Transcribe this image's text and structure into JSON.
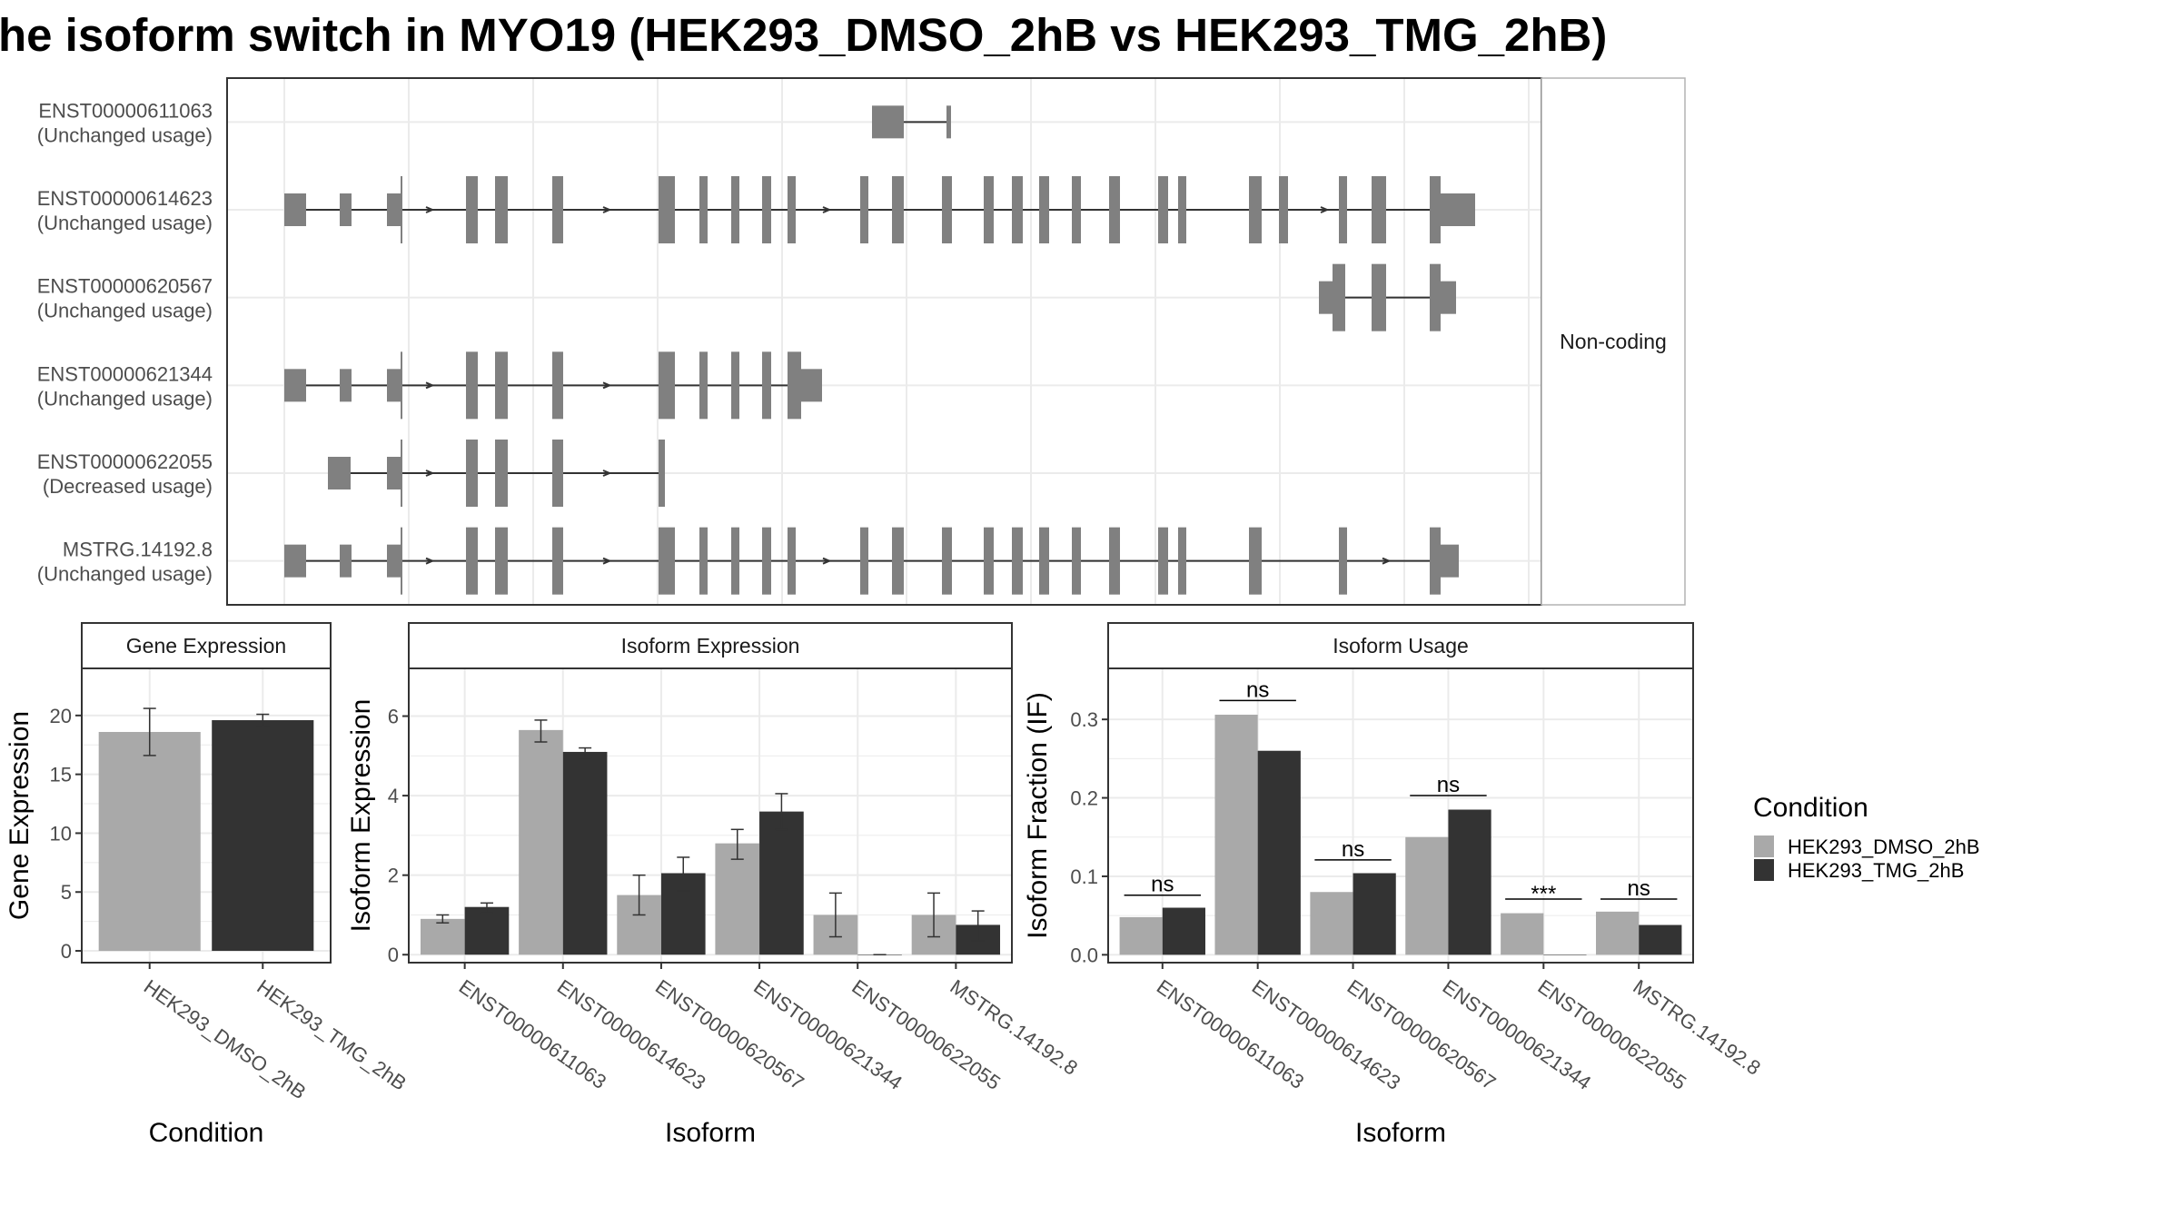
{
  "title": "he isoform switch in MYO19 (HEK293_DMSO_2hB vs HEK293_TMG_2hB)",
  "colors": {
    "exon": "#808080",
    "dmso": "#a9a9a9",
    "tmg": "#333333",
    "grid": "#ebebeb",
    "strip": "#ffffff",
    "panel_border": "#333333"
  },
  "chart_data": [
    {
      "type": "transcript-structure",
      "strip_label": "Non-coding",
      "transcripts": [
        {
          "id": "ENST00000611063",
          "usage": "(Unchanged usage)",
          "exons": [
            [
              960,
              995,
              "utr"
            ],
            [
              1042,
              1047,
              "utr"
            ]
          ],
          "intron": [
            995,
            1042
          ],
          "arrows": []
        },
        {
          "id": "ENST00000614623",
          "usage": "(Unchanged usage)",
          "exons": [
            [
              313,
              337,
              "utr"
            ],
            [
              374,
              387,
              "utr"
            ],
            [
              426,
              441,
              "utr"
            ],
            [
              441,
              443,
              "cds"
            ],
            [
              513,
              526,
              "cds"
            ],
            [
              545,
              559,
              "cds"
            ],
            [
              608,
              620,
              "cds"
            ],
            [
              725,
              743,
              "cds"
            ],
            [
              770,
              779,
              "cds"
            ],
            [
              805,
              814,
              "cds"
            ],
            [
              839,
              849,
              "cds"
            ],
            [
              867,
              876,
              "cds"
            ],
            [
              947,
              956,
              "cds"
            ],
            [
              982,
              995,
              "cds"
            ],
            [
              1037,
              1048,
              "cds"
            ],
            [
              1083,
              1094,
              "cds"
            ],
            [
              1114,
              1126,
              "cds"
            ],
            [
              1144,
              1155,
              "cds"
            ],
            [
              1180,
              1190,
              "cds"
            ],
            [
              1221,
              1233,
              "cds"
            ],
            [
              1275,
              1286,
              "cds"
            ],
            [
              1297,
              1306,
              "cds"
            ],
            [
              1375,
              1389,
              "cds"
            ],
            [
              1408,
              1418,
              "cds"
            ],
            [
              1474,
              1483,
              "cds"
            ],
            [
              1510,
              1526,
              "cds"
            ],
            [
              1574,
              1586,
              "cds"
            ],
            [
              1586,
              1624,
              "utr"
            ]
          ],
          "intron": [
            313,
            1624
          ],
          "arrows": [
            475,
            670,
            912,
            1460
          ]
        },
        {
          "id": "ENST00000620567",
          "usage": "(Unchanged usage)",
          "exons": [
            [
              1452,
              1467,
              "utr"
            ],
            [
              1467,
              1481,
              "cds"
            ],
            [
              1510,
              1526,
              "cds"
            ],
            [
              1574,
              1586,
              "cds"
            ],
            [
              1586,
              1603,
              "utr"
            ]
          ],
          "intron": [
            1452,
            1603
          ],
          "arrows": []
        },
        {
          "id": "ENST00000621344",
          "usage": "(Unchanged usage)",
          "exons": [
            [
              313,
              337,
              "utr"
            ],
            [
              374,
              387,
              "utr"
            ],
            [
              426,
              441,
              "utr"
            ],
            [
              441,
              443,
              "cds"
            ],
            [
              513,
              526,
              "cds"
            ],
            [
              545,
              559,
              "cds"
            ],
            [
              608,
              620,
              "cds"
            ],
            [
              725,
              743,
              "cds"
            ],
            [
              770,
              779,
              "cds"
            ],
            [
              805,
              814,
              "cds"
            ],
            [
              839,
              849,
              "cds"
            ],
            [
              867,
              882,
              "cds"
            ],
            [
              882,
              905,
              "utr"
            ]
          ],
          "intron": [
            313,
            905
          ],
          "arrows": [
            475,
            670
          ]
        },
        {
          "id": "ENST00000622055",
          "usage": "(Decreased usage)",
          "exons": [
            [
              361,
              386,
              "utr"
            ],
            [
              426,
              441,
              "utr"
            ],
            [
              441,
              443,
              "cds"
            ],
            [
              513,
              526,
              "cds"
            ],
            [
              545,
              559,
              "cds"
            ],
            [
              608,
              620,
              "cds"
            ],
            [
              725,
              732,
              "cds"
            ]
          ],
          "intron": [
            361,
            732
          ],
          "arrows": [
            475,
            670
          ]
        },
        {
          "id": "MSTRG.14192.8",
          "usage": "(Unchanged usage)",
          "exons": [
            [
              313,
              337,
              "utr"
            ],
            [
              374,
              387,
              "utr"
            ],
            [
              426,
              441,
              "utr"
            ],
            [
              441,
              443,
              "cds"
            ],
            [
              513,
              526,
              "cds"
            ],
            [
              545,
              559,
              "cds"
            ],
            [
              608,
              620,
              "cds"
            ],
            [
              725,
              743,
              "cds"
            ],
            [
              770,
              779,
              "cds"
            ],
            [
              805,
              814,
              "cds"
            ],
            [
              839,
              849,
              "cds"
            ],
            [
              867,
              876,
              "cds"
            ],
            [
              947,
              956,
              "cds"
            ],
            [
              982,
              995,
              "cds"
            ],
            [
              1037,
              1048,
              "cds"
            ],
            [
              1083,
              1094,
              "cds"
            ],
            [
              1114,
              1126,
              "cds"
            ],
            [
              1144,
              1155,
              "cds"
            ],
            [
              1180,
              1190,
              "cds"
            ],
            [
              1221,
              1233,
              "cds"
            ],
            [
              1275,
              1286,
              "cds"
            ],
            [
              1297,
              1306,
              "cds"
            ],
            [
              1375,
              1389,
              "cds"
            ],
            [
              1474,
              1483,
              "cds"
            ],
            [
              1574,
              1586,
              "cds"
            ],
            [
              1586,
              1606,
              "utr"
            ]
          ],
          "intron": [
            313,
            1606
          ],
          "arrows": [
            475,
            670,
            912,
            1528
          ]
        }
      ]
    },
    {
      "type": "bar",
      "strip_label": "Gene Expression",
      "xlabel": "Condition",
      "ylabel": "Gene Expression",
      "ylim": [
        -1,
        24
      ],
      "yticks": [
        0,
        5,
        10,
        15,
        20
      ],
      "categories": [
        "HEK293_DMSO_2hB",
        "HEK293_TMG_2hB"
      ],
      "values": [
        18.6,
        19.6
      ],
      "errors": [
        [
          16.6,
          20.6
        ],
        [
          19.1,
          20.1
        ]
      ]
    },
    {
      "type": "bar",
      "strip_label": "Isoform Expression",
      "xlabel": "Isoform",
      "ylabel": "Isoform Expression",
      "ylim": [
        -0.2,
        7.2
      ],
      "yticks": [
        0,
        2,
        4,
        6
      ],
      "categories": [
        "ENST00000611063",
        "ENST00000614623",
        "ENST00000620567",
        "ENST00000621344",
        "ENST00000622055",
        "MSTRG.14192.8"
      ],
      "series": [
        {
          "name": "HEK293_DMSO_2hB",
          "values": [
            0.9,
            5.65,
            1.5,
            2.8,
            1.0,
            1.0
          ],
          "errors": [
            [
              0.8,
              1.0
            ],
            [
              5.35,
              5.9
            ],
            [
              1.0,
              2.0
            ],
            [
              2.4,
              3.15
            ],
            [
              0.45,
              1.55
            ],
            [
              0.45,
              1.55
            ]
          ]
        },
        {
          "name": "HEK293_TMG_2hB",
          "values": [
            1.2,
            5.1,
            2.05,
            3.6,
            0.0,
            0.75
          ],
          "errors": [
            [
              1.05,
              1.3
            ],
            [
              4.95,
              5.2
            ],
            [
              1.6,
              2.45
            ],
            [
              3.15,
              4.05
            ],
            [
              0.0,
              0.0
            ],
            [
              0.35,
              1.1
            ]
          ]
        }
      ]
    },
    {
      "type": "bar",
      "strip_label": "Isoform Usage",
      "xlabel": "Isoform",
      "ylabel": "Isoform Fraction (IF)",
      "ylim": [
        -0.01,
        0.365
      ],
      "yticks": [
        0.0,
        0.1,
        0.2,
        0.3
      ],
      "ytick_labels": [
        "0.0",
        "0.1",
        "0.2",
        "0.3"
      ],
      "categories": [
        "ENST00000611063",
        "ENST00000614623",
        "ENST00000620567",
        "ENST00000621344",
        "ENST00000622055",
        "MSTRG.14192.8"
      ],
      "series": [
        {
          "name": "HEK293_DMSO_2hB",
          "values": [
            0.048,
            0.306,
            0.08,
            0.15,
            0.053,
            0.055
          ]
        },
        {
          "name": "HEK293_TMG_2hB",
          "values": [
            0.06,
            0.26,
            0.104,
            0.185,
            0.0,
            0.038
          ]
        }
      ],
      "significance": [
        "ns",
        "ns",
        "ns",
        "ns",
        "***",
        "ns"
      ],
      "sig_levels": [
        0.076,
        0.324,
        0.121,
        0.203,
        0.071,
        0.071
      ]
    }
  ],
  "legend": {
    "title": "Condition",
    "items": [
      {
        "label": "HEK293_DMSO_2hB",
        "color": "#a9a9a9"
      },
      {
        "label": "HEK293_TMG_2hB",
        "color": "#333333"
      }
    ]
  }
}
